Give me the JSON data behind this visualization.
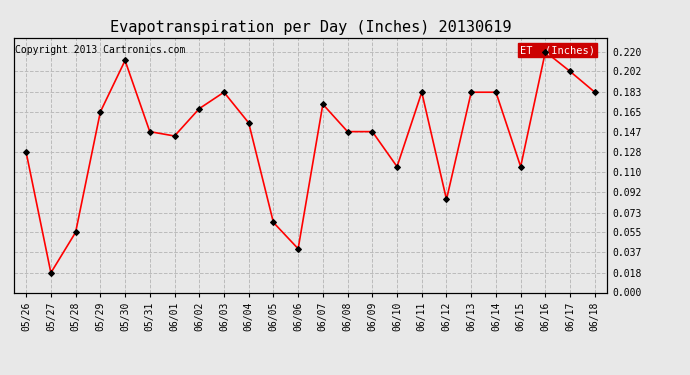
{
  "title": "Evapotranspiration per Day (Inches) 20130619",
  "copyright": "Copyright 2013 Cartronics.com",
  "legend_label": "ET  (Inches)",
  "dates": [
    "05/26",
    "05/27",
    "05/28",
    "05/29",
    "05/30",
    "05/31",
    "06/01",
    "06/02",
    "06/03",
    "06/04",
    "06/05",
    "06/06",
    "06/07",
    "06/08",
    "06/09",
    "06/10",
    "06/11",
    "06/12",
    "06/13",
    "06/14",
    "06/15",
    "06/16",
    "06/17",
    "06/18"
  ],
  "values": [
    0.128,
    0.018,
    0.055,
    0.165,
    0.212,
    0.147,
    0.143,
    0.168,
    0.183,
    0.155,
    0.064,
    0.04,
    0.172,
    0.147,
    0.147,
    0.115,
    0.183,
    0.085,
    0.183,
    0.183,
    0.115,
    0.22,
    0.202,
    0.183
  ],
  "ylim": [
    0.0,
    0.233
  ],
  "yticks": [
    0.0,
    0.018,
    0.037,
    0.055,
    0.073,
    0.092,
    0.11,
    0.128,
    0.147,
    0.165,
    0.183,
    0.202,
    0.22
  ],
  "line_color": "red",
  "marker_color": "black",
  "background_color": "#e8e8e8",
  "grid_color": "#bbbbbb",
  "title_fontsize": 11,
  "copyright_fontsize": 7,
  "tick_fontsize": 7,
  "legend_bg": "#cc0000",
  "legend_fg": "white"
}
